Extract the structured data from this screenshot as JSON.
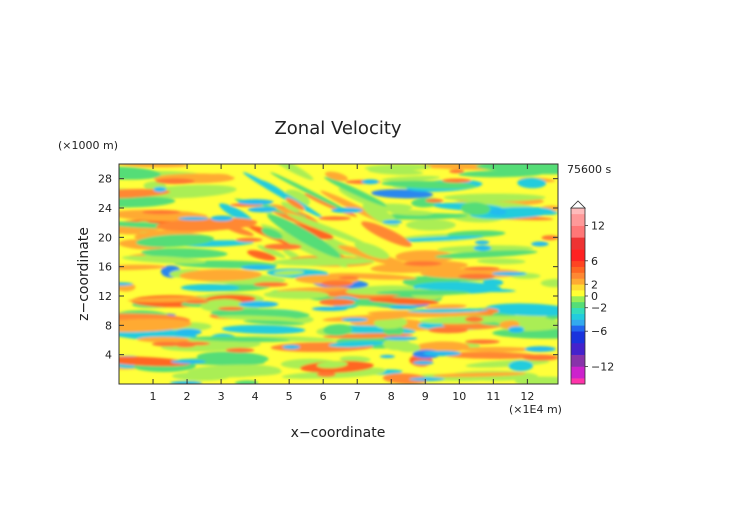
{
  "chart_data": {
    "type": "heatmap",
    "title": "Zonal Velocity",
    "xlabel": "x−coordinate",
    "ylabel": "z−coordinate",
    "x_unit_label": "(×1E4 m)",
    "y_unit_label": "(×1000 m)",
    "time_label": "75600 s",
    "x_range": [
      0,
      12.9
    ],
    "y_range": [
      0,
      30
    ],
    "x_ticks": [
      "1",
      "2",
      "3",
      "4",
      "5",
      "6",
      "7",
      "8",
      "9",
      "10",
      "11",
      "12"
    ],
    "y_ticks": [
      "4",
      "8",
      "12",
      "16",
      "20",
      "24",
      "28"
    ],
    "colorbar": {
      "range": [
        -15,
        15
      ],
      "tick_labels": [
        "12",
        "6",
        "2",
        "0",
        "−2",
        "−6",
        "−12"
      ],
      "tick_values": [
        12,
        6,
        2,
        0,
        -2,
        -6,
        -12
      ],
      "levels": [
        -15,
        -14,
        -12,
        -10,
        -8,
        -6,
        -5,
        -4,
        -3,
        -2,
        -1,
        0,
        1,
        2,
        3,
        4,
        5,
        6,
        8,
        10,
        12,
        14,
        15
      ],
      "colors": [
        "#ff33aa",
        "#cc22cc",
        "#8833aa",
        "#4422cc",
        "#1a33dd",
        "#2266ee",
        "#33aaee",
        "#22ccdd",
        "#33ddbb",
        "#55dd77",
        "#99ee55",
        "#ffff33",
        "#ffdd33",
        "#ffaa33",
        "#ff8833",
        "#ff6622",
        "#ff4422",
        "#ff2222",
        "#ee3333",
        "#ff7777",
        "#ff9999",
        "#ffbbbb"
      ]
    }
  }
}
